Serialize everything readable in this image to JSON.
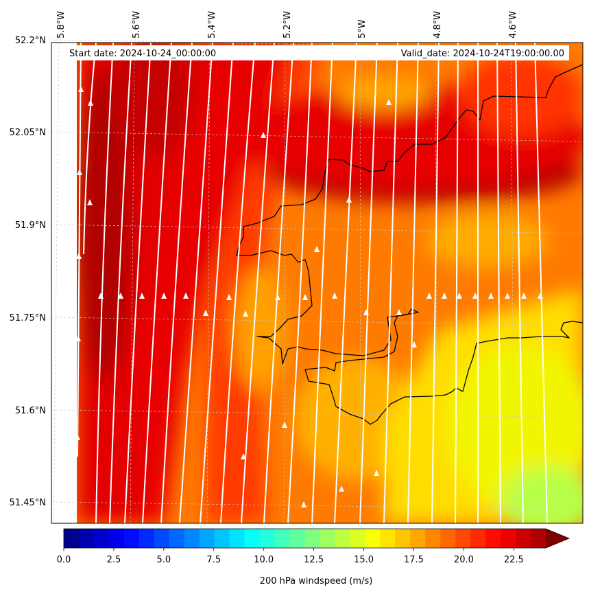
{
  "header": {
    "start_text": "Start date: 2024-10-24_00:00:00",
    "valid_text": "Valid_date: 2024-10-24T19:00:00.00"
  },
  "axes": {
    "lon_labels": [
      "5.8°W",
      "5.6°W",
      "5.4°W",
      "5.2°W",
      "5°W",
      "4.8°W",
      "4.6°W"
    ],
    "lat_labels": [
      "52.2°N",
      "52.05°N",
      "51.9°N",
      "51.75°N",
      "51.6°N",
      "51.45°N"
    ]
  },
  "colorbar": {
    "label": "200 hPa windspeed (m/s)",
    "ticks": [
      "0.0",
      "2.5",
      "5.0",
      "7.5",
      "10.0",
      "12.5",
      "15.0",
      "17.5",
      "20.0",
      "22.5"
    ],
    "vmin": 0,
    "vmax": 25,
    "levels": 32,
    "extend": "max",
    "cmap": "jet"
  },
  "field": {
    "variable": "200 hPa windspeed",
    "units": "m/s",
    "colors": {
      "deep_red": "#a00000",
      "red": "#e80000",
      "red_orange": "#ff3a00",
      "orange": "#ff7800",
      "amber": "#ffaa00",
      "yellow": "#ffee00",
      "yellow_green": "#c8ff40",
      "green": "#9cff5a"
    },
    "streamline_color": "#ffffff",
    "coastline_color": "#000000"
  }
}
